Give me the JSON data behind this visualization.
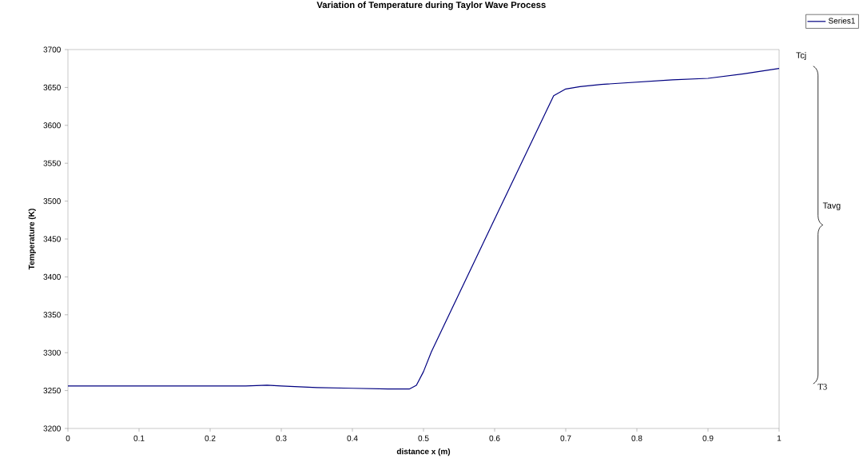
{
  "chart_data": {
    "type": "line",
    "title": "Variation of Temperature during Taylor Wave Process",
    "xlabel": "distance x (m)",
    "ylabel": "Temperature (K)",
    "series": [
      {
        "name": "Series1",
        "color": "#000080",
        "x": [
          0,
          0.1,
          0.2,
          0.25,
          0.28,
          0.3,
          0.35,
          0.4,
          0.45,
          0.48,
          0.49,
          0.5,
          0.511,
          0.607,
          0.683,
          0.7,
          0.72,
          0.75,
          0.8,
          0.85,
          0.9,
          0.95,
          1.0
        ],
        "values": [
          3256,
          3256,
          3256,
          3256,
          3257,
          3256,
          3254,
          3253,
          3252,
          3252,
          3257,
          3275,
          3301,
          3490,
          3639,
          3648,
          3651,
          3654,
          3657,
          3660,
          3662,
          3668,
          3675
        ]
      }
    ],
    "xlim": [
      0,
      1
    ],
    "xticks": [
      0,
      0.1,
      0.2,
      0.3,
      0.4,
      0.5,
      0.6,
      0.7,
      0.8,
      0.9,
      1
    ],
    "ylim": [
      3200,
      3700
    ],
    "yticks": [
      3200,
      3250,
      3300,
      3350,
      3400,
      3450,
      3500,
      3550,
      3600,
      3650,
      3700
    ],
    "annotations": [
      "Tcj",
      "Tavg",
      "T3"
    ],
    "grid": false,
    "legend": "top right",
    "marker": "none",
    "line_style": "solid"
  }
}
